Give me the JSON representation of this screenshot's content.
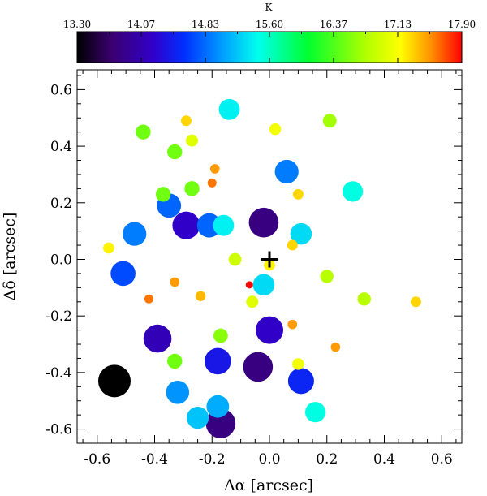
{
  "chart_data": {
    "type": "scatter",
    "xlabel": "Δα [arcsec]",
    "ylabel": "Δδ [arcsec]",
    "xlim": [
      -0.67,
      0.67
    ],
    "ylim": [
      -0.65,
      0.67
    ],
    "xticks": [
      "-0.6",
      "-0.4",
      "-0.2",
      "0.0",
      "0.2",
      "0.4",
      "0.6"
    ],
    "yticks": [
      "-0.6",
      "-0.4",
      "-0.2",
      "0.0",
      "0.2",
      "0.4",
      "0.6"
    ],
    "grid": false,
    "marker": {
      "x": 0.0,
      "y": 0.0,
      "symbol": "plus"
    },
    "colorbar": {
      "title": "K",
      "min": 13.3,
      "max": 17.9,
      "tick_labels": [
        "13.30",
        "14.07",
        "14.83",
        "15.60",
        "16.37",
        "17.13",
        "17.90"
      ],
      "colormap": "rainbow (black-purple-blue-cyan-green-yellow-red)"
    },
    "points": [
      {
        "x": -0.54,
        "y": -0.43,
        "k": 13.3
      },
      {
        "x": -0.17,
        "y": -0.58,
        "k": 13.8
      },
      {
        "x": -0.04,
        "y": -0.38,
        "k": 13.8
      },
      {
        "x": -0.02,
        "y": 0.13,
        "k": 13.8
      },
      {
        "x": -0.39,
        "y": -0.28,
        "k": 14.1
      },
      {
        "x": 0.0,
        "y": -0.25,
        "k": 14.2
      },
      {
        "x": -0.29,
        "y": 0.12,
        "k": 14.2
      },
      {
        "x": -0.18,
        "y": -0.36,
        "k": 14.4
      },
      {
        "x": 0.11,
        "y": -0.43,
        "k": 14.5
      },
      {
        "x": -0.51,
        "y": -0.05,
        "k": 14.7
      },
      {
        "x": -0.35,
        "y": 0.19,
        "k": 14.8
      },
      {
        "x": -0.21,
        "y": 0.12,
        "k": 14.8
      },
      {
        "x": -0.47,
        "y": 0.09,
        "k": 14.9
      },
      {
        "x": 0.06,
        "y": 0.31,
        "k": 14.9
      },
      {
        "x": -0.32,
        "y": -0.47,
        "k": 15.0
      },
      {
        "x": -0.18,
        "y": -0.52,
        "k": 15.1
      },
      {
        "x": -0.25,
        "y": -0.56,
        "k": 15.2
      },
      {
        "x": -0.02,
        "y": -0.09,
        "k": 15.3
      },
      {
        "x": 0.11,
        "y": 0.09,
        "k": 15.3
      },
      {
        "x": -0.16,
        "y": 0.12,
        "k": 15.4
      },
      {
        "x": -0.14,
        "y": 0.53,
        "k": 15.4
      },
      {
        "x": 0.29,
        "y": 0.24,
        "k": 15.5
      },
      {
        "x": 0.16,
        "y": -0.54,
        "k": 15.5
      },
      {
        "x": -0.44,
        "y": 0.45,
        "k": 16.5
      },
      {
        "x": -0.33,
        "y": 0.38,
        "k": 16.5
      },
      {
        "x": -0.27,
        "y": 0.25,
        "k": 16.5
      },
      {
        "x": -0.37,
        "y": 0.23,
        "k": 16.5
      },
      {
        "x": -0.33,
        "y": -0.36,
        "k": 16.5
      },
      {
        "x": -0.17,
        "y": -0.27,
        "k": 16.6
      },
      {
        "x": 0.21,
        "y": 0.49,
        "k": 16.7
      },
      {
        "x": 0.2,
        "y": -0.06,
        "k": 16.8
      },
      {
        "x": 0.33,
        "y": -0.14,
        "k": 16.8
      },
      {
        "x": -0.12,
        "y": 0.0,
        "k": 16.9
      },
      {
        "x": -0.06,
        "y": -0.15,
        "k": 17.0
      },
      {
        "x": -0.27,
        "y": 0.42,
        "k": 17.0
      },
      {
        "x": 0.02,
        "y": 0.46,
        "k": 17.1
      },
      {
        "x": 0.1,
        "y": -0.37,
        "k": 17.1
      },
      {
        "x": -0.56,
        "y": 0.04,
        "k": 17.2
      },
      {
        "x": -0.29,
        "y": 0.49,
        "k": 17.3
      },
      {
        "x": 0.08,
        "y": 0.05,
        "k": 17.3
      },
      {
        "x": 0.1,
        "y": 0.23,
        "k": 17.3
      },
      {
        "x": 0.51,
        "y": -0.15,
        "k": 17.3
      },
      {
        "x": -0.24,
        "y": -0.13,
        "k": 17.4
      },
      {
        "x": 0.0,
        "y": -0.02,
        "k": 17.2
      },
      {
        "x": -0.33,
        "y": -0.08,
        "k": 17.5
      },
      {
        "x": -0.19,
        "y": 0.32,
        "k": 17.5
      },
      {
        "x": 0.08,
        "y": -0.23,
        "k": 17.5
      },
      {
        "x": 0.23,
        "y": -0.31,
        "k": 17.5
      },
      {
        "x": -0.42,
        "y": -0.14,
        "k": 17.6
      },
      {
        "x": -0.2,
        "y": 0.27,
        "k": 17.6
      },
      {
        "x": -0.07,
        "y": -0.09,
        "k": 17.9
      }
    ]
  }
}
